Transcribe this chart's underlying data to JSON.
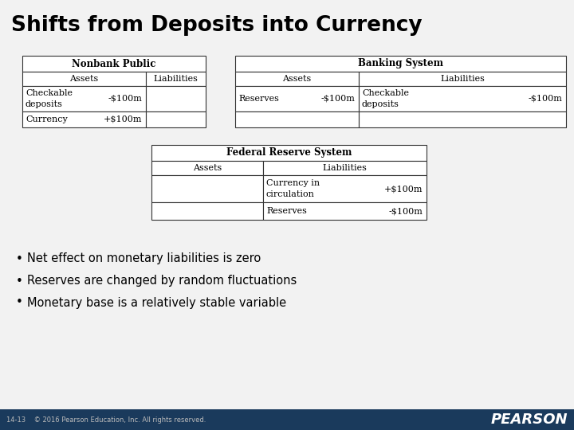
{
  "title": "Shifts from Deposits into Currency",
  "bg_color": "#f2f2f2",
  "footer_bg": "#1a3a5c",
  "footer_left": "14-13    © 2016 Pearson Education, Inc. All rights reserved.",
  "footer_right": "PEARSON",
  "nonbank_title": "Nonbank Public",
  "banking_title": "Banking System",
  "fed_title": "Federal Reserve System",
  "bullet_points": [
    "Net effect on monetary liabilities is zero",
    "Reserves are changed by random fluctuations",
    "Monetary base is a relatively stable variable"
  ],
  "nonbank_assets_header": "Assets",
  "nonbank_liab_header": "Liabilities",
  "banking_assets_header": "Assets",
  "banking_liab_header": "Liabilities",
  "fed_assets_header": "Assets",
  "fed_liab_header": "Liabilities"
}
